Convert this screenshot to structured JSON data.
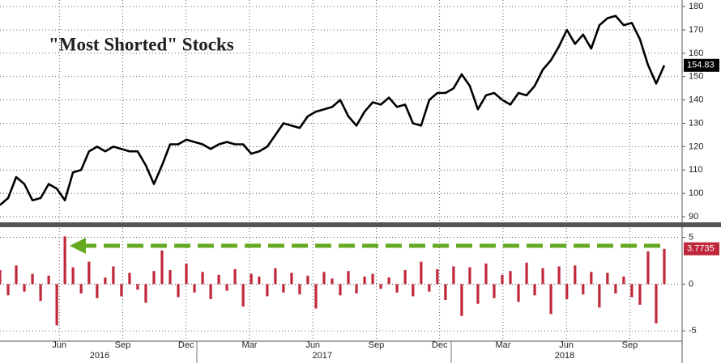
{
  "chart_data": [
    {
      "type": "line",
      "title": "\"Most Shorted\" Stocks",
      "color": "#000000",
      "grid": true,
      "xlim": [
        2016.224,
        2018.908
      ],
      "ylim": [
        87.6,
        182.8
      ],
      "yticks": [
        90,
        100,
        110,
        120,
        130,
        140,
        150,
        160,
        170,
        180
      ],
      "x": [
        2016.224,
        2016.256,
        2016.288,
        2016.32,
        2016.352,
        2016.384,
        2016.416,
        2016.448,
        2016.48,
        2016.512,
        2016.544,
        2016.575,
        2016.607,
        2016.639,
        2016.671,
        2016.703,
        2016.735,
        2016.767,
        2016.799,
        2016.831,
        2016.863,
        2016.895,
        2016.927,
        2016.959,
        2016.991,
        2017.023,
        2017.055,
        2017.087,
        2017.119,
        2017.151,
        2017.183,
        2017.215,
        2017.246,
        2017.278,
        2017.31,
        2017.342,
        2017.374,
        2017.406,
        2017.438,
        2017.47,
        2017.502,
        2017.534,
        2017.566,
        2017.598,
        2017.63,
        2017.662,
        2017.694,
        2017.726,
        2017.758,
        2017.79,
        2017.822,
        2017.853,
        2017.885,
        2017.917,
        2017.949,
        2017.981,
        2018.013,
        2018.045,
        2018.077,
        2018.109,
        2018.141,
        2018.173,
        2018.205,
        2018.237,
        2018.269,
        2018.301,
        2018.333,
        2018.365,
        2018.397,
        2018.429,
        2018.46,
        2018.492,
        2018.524,
        2018.556,
        2018.588,
        2018.62,
        2018.652,
        2018.684,
        2018.716,
        2018.748,
        2018.78,
        2018.812,
        2018.844
      ],
      "values": [
        95,
        98,
        107,
        104,
        97,
        98,
        104,
        102,
        97,
        109,
        110,
        118,
        120,
        118,
        120,
        119,
        118,
        118,
        112,
        104,
        112,
        121,
        121,
        123,
        122,
        121,
        119,
        121,
        122,
        121,
        121,
        117,
        118,
        120,
        125,
        130,
        129,
        128,
        133,
        135,
        136,
        137,
        140,
        133,
        129,
        135,
        139,
        138,
        141,
        137,
        138,
        130,
        129,
        140,
        143,
        143,
        145,
        151,
        146,
        136,
        142,
        143,
        140,
        138,
        143,
        142,
        146,
        153,
        157,
        163,
        170,
        164,
        168,
        162,
        172,
        175,
        176,
        172,
        173,
        166,
        155,
        147,
        154.83
      ]
    },
    {
      "type": "bar",
      "color": "#c0273a",
      "grid": true,
      "xlim": [
        2016.224,
        2018.908
      ],
      "ylim": [
        -6.1,
        6
      ],
      "yticks": [
        -5,
        0,
        5
      ],
      "xticks": [
        {
          "value": 2016.458,
          "label": "Jun"
        },
        {
          "value": 2016.708,
          "label": "Sep"
        },
        {
          "value": 2016.958,
          "label": "Dec"
        },
        {
          "value": 2017.208,
          "label": "Mar"
        },
        {
          "value": 2017.458,
          "label": "Jun"
        },
        {
          "value": 2017.708,
          "label": "Sep"
        },
        {
          "value": 2017.958,
          "label": "Dec"
        },
        {
          "value": 2018.208,
          "label": "Mar"
        },
        {
          "value": 2018.458,
          "label": "Jun"
        },
        {
          "value": 2018.708,
          "label": "Sep"
        }
      ],
      "year_ticks": [
        {
          "value": 2016.617,
          "label": "2016"
        },
        {
          "value": 2017.495,
          "label": "2017"
        },
        {
          "value": 2018.451,
          "label": "2018"
        }
      ],
      "x": [
        2016.224,
        2016.256,
        2016.288,
        2016.32,
        2016.352,
        2016.384,
        2016.416,
        2016.448,
        2016.48,
        2016.512,
        2016.544,
        2016.575,
        2016.607,
        2016.639,
        2016.671,
        2016.703,
        2016.735,
        2016.767,
        2016.799,
        2016.831,
        2016.863,
        2016.895,
        2016.927,
        2016.959,
        2016.991,
        2017.023,
        2017.055,
        2017.087,
        2017.119,
        2017.151,
        2017.183,
        2017.215,
        2017.246,
        2017.278,
        2017.31,
        2017.342,
        2017.374,
        2017.406,
        2017.438,
        2017.47,
        2017.502,
        2017.534,
        2017.566,
        2017.598,
        2017.63,
        2017.662,
        2017.694,
        2017.726,
        2017.758,
        2017.79,
        2017.822,
        2017.853,
        2017.885,
        2017.917,
        2017.949,
        2017.981,
        2018.013,
        2018.045,
        2018.077,
        2018.109,
        2018.141,
        2018.173,
        2018.205,
        2018.237,
        2018.269,
        2018.301,
        2018.333,
        2018.365,
        2018.397,
        2018.429,
        2018.46,
        2018.492,
        2018.524,
        2018.556,
        2018.588,
        2018.62,
        2018.652,
        2018.684,
        2018.716,
        2018.748,
        2018.78,
        2018.812,
        2018.844
      ],
      "values": [
        1.5,
        -1.2,
        2.0,
        -0.8,
        1.1,
        -1.8,
        0.9,
        -4.4,
        5.1,
        1.8,
        -1.0,
        2.4,
        -1.5,
        0.7,
        1.9,
        -1.3,
        1.2,
        -0.6,
        -2.0,
        1.4,
        3.6,
        1.5,
        -1.4,
        2.2,
        -0.9,
        1.3,
        -1.6,
        1.0,
        -0.7,
        1.6,
        -2.4,
        1.1,
        0.8,
        -1.3,
        1.7,
        -0.9,
        1.2,
        -1.1,
        0.9,
        -2.6,
        1.3,
        0.6,
        -1.2,
        1.4,
        -1.0,
        0.8,
        1.1,
        -0.5,
        0.7,
        -0.9,
        1.5,
        -1.3,
        2.4,
        -0.8,
        1.6,
        -1.7,
        1.9,
        -3.4,
        1.8,
        -2.1,
        2.2,
        -1.5,
        1.0,
        1.4,
        -1.9,
        2.3,
        -1.2,
        1.7,
        -3.2,
        1.9,
        -1.6,
        2.0,
        -1.1,
        1.3,
        -2.5,
        1.2,
        -1.0,
        0.8,
        -1.4,
        -2.2,
        3.5,
        -4.2,
        3.7735
      ]
    }
  ]
}
